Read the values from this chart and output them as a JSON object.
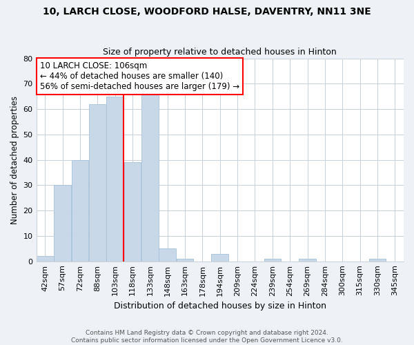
{
  "title": "10, LARCH CLOSE, WOODFORD HALSE, DAVENTRY, NN11 3NE",
  "subtitle": "Size of property relative to detached houses in Hinton",
  "xlabel": "Distribution of detached houses by size in Hinton",
  "ylabel": "Number of detached properties",
  "bar_color": "#c8d8e8",
  "bar_edge_color": "#a8c0d8",
  "vline_color": "red",
  "categories": [
    "42sqm",
    "57sqm",
    "72sqm",
    "88sqm",
    "103sqm",
    "118sqm",
    "133sqm",
    "148sqm",
    "163sqm",
    "178sqm",
    "194sqm",
    "209sqm",
    "224sqm",
    "239sqm",
    "254sqm",
    "269sqm",
    "284sqm",
    "300sqm",
    "315sqm",
    "330sqm",
    "345sqm"
  ],
  "values": [
    2,
    30,
    40,
    62,
    65,
    39,
    66,
    5,
    1,
    0,
    3,
    0,
    0,
    1,
    0,
    1,
    0,
    0,
    0,
    1,
    0
  ],
  "ylim": [
    0,
    80
  ],
  "yticks": [
    0,
    10,
    20,
    30,
    40,
    50,
    60,
    70,
    80
  ],
  "annotation_title": "10 LARCH CLOSE: 106sqm",
  "annotation_line1": "← 44% of detached houses are smaller (140)",
  "annotation_line2": "56% of semi-detached houses are larger (179) →",
  "annotation_box_color": "white",
  "annotation_box_edge": "red",
  "footer_line1": "Contains HM Land Registry data © Crown copyright and database right 2024.",
  "footer_line2": "Contains public sector information licensed under the Open Government Licence v3.0.",
  "background_color": "#eef2f7",
  "plot_background": "white",
  "grid_color": "#c8d0da"
}
